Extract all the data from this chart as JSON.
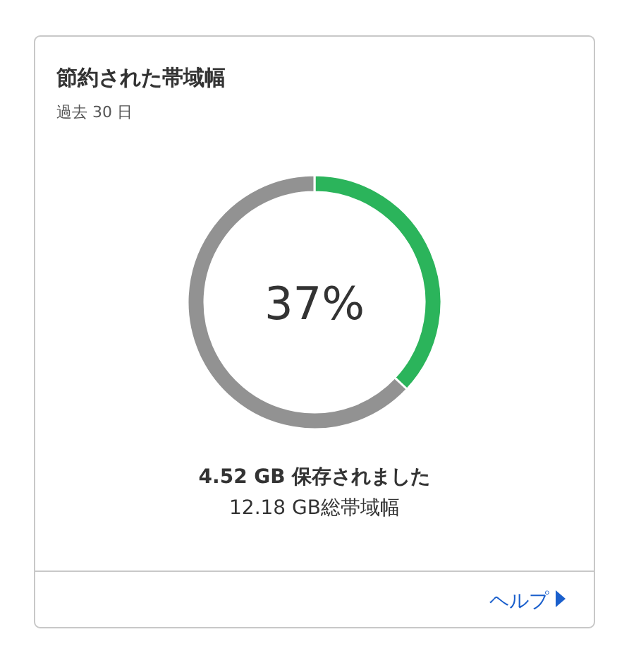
{
  "chart_data": {
    "type": "donut",
    "title": "節約された帯域幅",
    "subtitle": "過去 30 日",
    "categories": [
      null,
      null
    ],
    "values": [
      37,
      63
    ],
    "colors": [
      "#2bb45b",
      "#929292"
    ],
    "annotations": [
      "37%",
      "4.52 GB 保存されました",
      "12.18 GB総帯域幅",
      "ヘルプ"
    ]
  }
}
